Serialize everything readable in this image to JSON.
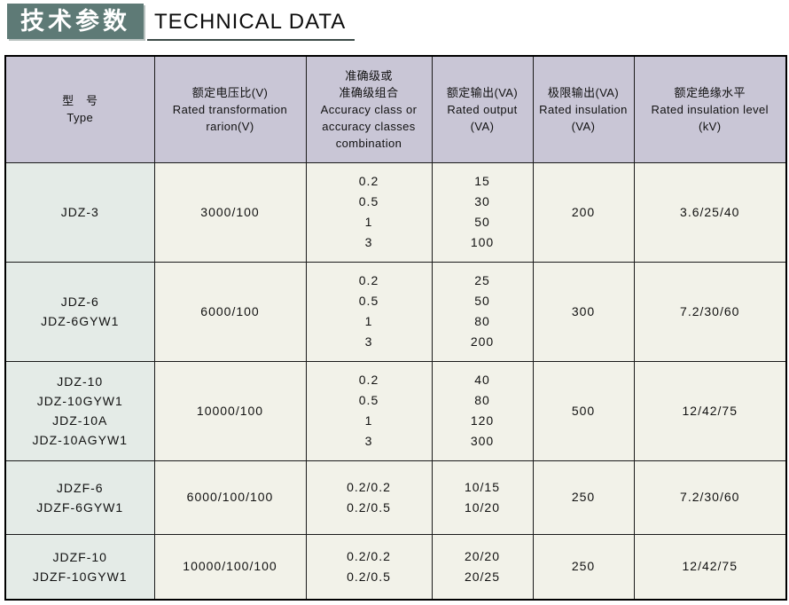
{
  "title": {
    "zh": "技术参数",
    "en": "TECHNICAL DATA"
  },
  "colors": {
    "title_box_bg": "#5e7a76",
    "header_row_bg": "#c9c6d6",
    "type_col_bg": "#e4ebe7",
    "cell_bg": "#f2f2e9",
    "border_color": "#1a1a1a"
  },
  "table": {
    "headers": [
      {
        "name": "type",
        "lines": [
          "型　号",
          "Type"
        ]
      },
      {
        "name": "rated-transformation-ratio",
        "lines": [
          "额定电压比(V)",
          "Rated transformation",
          "rarion(V)"
        ]
      },
      {
        "name": "accuracy-class",
        "lines": [
          "准确级或",
          "准确级组合",
          "Accuracy class or",
          "accuracy classes",
          "combination"
        ]
      },
      {
        "name": "rated-output",
        "lines": [
          "额定输出(VA)",
          "Rated output",
          "(VA)"
        ]
      },
      {
        "name": "limit-output",
        "lines": [
          "极限输出(VA)",
          "Rated insulation",
          "(VA)"
        ]
      },
      {
        "name": "rated-insulation-level",
        "lines": [
          "额定绝缘水平",
          "Rated insulation level",
          "(kV)"
        ]
      }
    ],
    "rows": [
      {
        "types": [
          "JDZ-3"
        ],
        "voltage_ratio": "3000/100",
        "accuracy_classes": [
          "0.2",
          "0.5",
          "1",
          "3"
        ],
        "rated_outputs": [
          "15",
          "30",
          "50",
          "100"
        ],
        "limit_output": "200",
        "insulation_level": "3.6/25/40"
      },
      {
        "types": [
          "JDZ-6",
          "JDZ-6GYW1"
        ],
        "voltage_ratio": "6000/100",
        "accuracy_classes": [
          "0.2",
          "0.5",
          "1",
          "3"
        ],
        "rated_outputs": [
          "25",
          "50",
          "80",
          "200"
        ],
        "limit_output": "300",
        "insulation_level": "7.2/30/60"
      },
      {
        "types": [
          "JDZ-10",
          "JDZ-10GYW1",
          "JDZ-10A",
          "JDZ-10AGYW1"
        ],
        "voltage_ratio": "10000/100",
        "accuracy_classes": [
          "0.2",
          "0.5",
          "1",
          "3"
        ],
        "rated_outputs": [
          "40",
          "80",
          "120",
          "300"
        ],
        "limit_output": "500",
        "insulation_level": "12/42/75"
      },
      {
        "types": [
          "JDZF-6",
          "JDZF-6GYW1"
        ],
        "voltage_ratio": "6000/100/100",
        "accuracy_classes": [
          "0.2/0.2",
          "0.2/0.5"
        ],
        "rated_outputs": [
          "10/15",
          "10/20"
        ],
        "limit_output": "250",
        "insulation_level": "7.2/30/60"
      },
      {
        "types": [
          "JDZF-10",
          "JDZF-10GYW1"
        ],
        "voltage_ratio": "10000/100/100",
        "accuracy_classes": [
          "0.2/0.2",
          "0.2/0.5"
        ],
        "rated_outputs": [
          "20/20",
          "20/25"
        ],
        "limit_output": "250",
        "insulation_level": "12/42/75"
      }
    ]
  }
}
